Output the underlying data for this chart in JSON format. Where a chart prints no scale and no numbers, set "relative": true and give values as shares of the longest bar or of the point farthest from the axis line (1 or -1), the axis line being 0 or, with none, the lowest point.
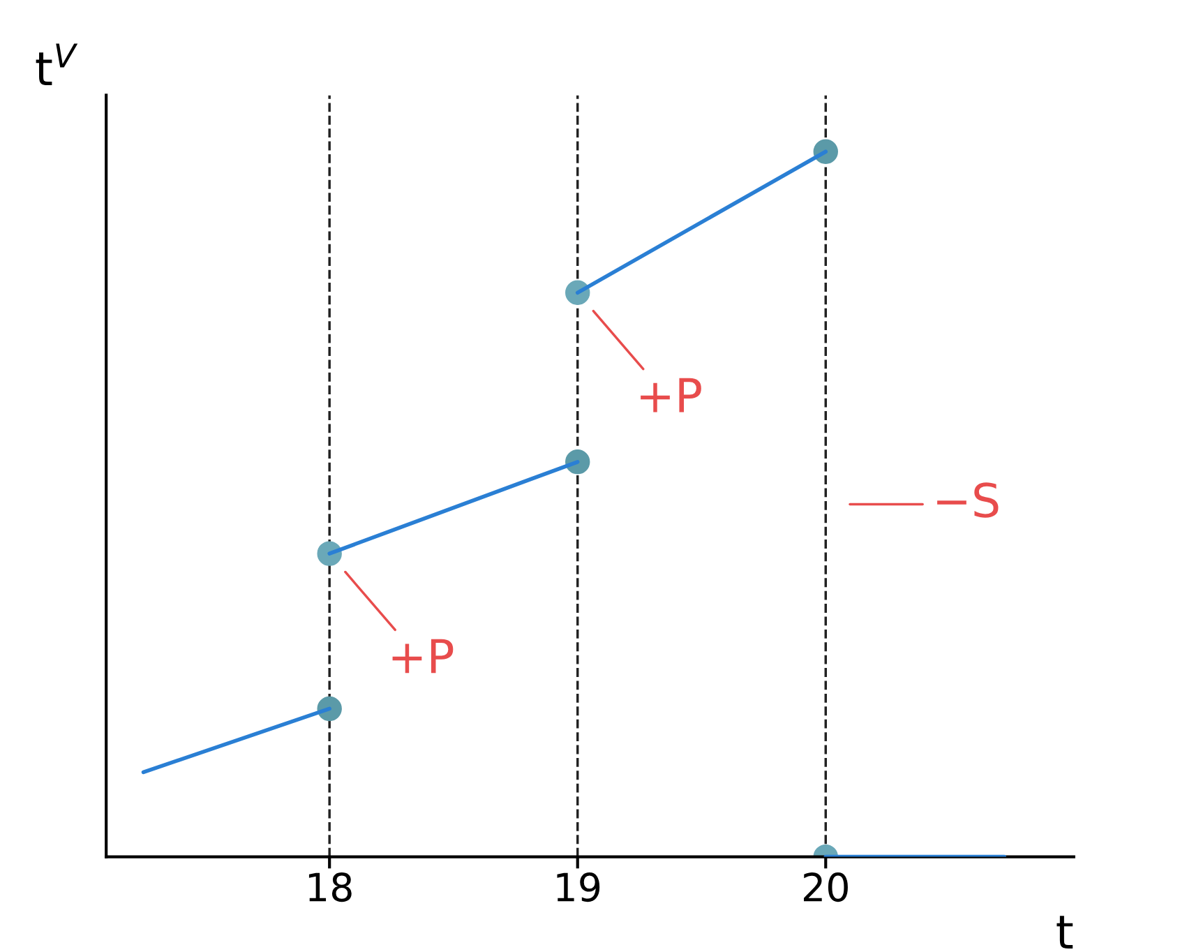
{
  "chart_data": {
    "type": "line",
    "relative": true,
    "xlabel": "t",
    "ylabel": "t$^{V}$",
    "xlim": [
      17.1,
      21.0
    ],
    "xticks": [
      18,
      19,
      20
    ],
    "grid": false,
    "legend": false,
    "line_style": "solid",
    "marker": "none",
    "series": [
      {
        "color": "#2a7fd4",
        "x": [
          17.25,
          18
        ],
        "values": [
          0.12,
          0.21
        ]
      },
      {
        "color": "#2a7fd4",
        "x": [
          18,
          19
        ],
        "values": [
          0.43,
          0.56
        ]
      },
      {
        "color": "#2a7fd4",
        "x": [
          19,
          20
        ],
        "values": [
          0.8,
          1
        ]
      },
      {
        "color": "#2a7fd4",
        "x": [
          20,
          20.72
        ],
        "values": [
          0,
          0
        ]
      },
      {
        "type": "scatter",
        "marker": "circle",
        "color": "#5b9aa8",
        "x": [
          18,
          19,
          20
        ],
        "values": [
          0.21,
          0.56,
          1
        ]
      },
      {
        "type": "scatter",
        "marker": "circle",
        "color": "#6aa8b8",
        "x": [
          18,
          19,
          20
        ],
        "values": [
          0.43,
          0.8,
          0
        ]
      }
    ],
    "ref_lines": [
      {
        "axis": "x",
        "value": 18,
        "color": "#222222",
        "line_style": "dashed"
      },
      {
        "axis": "x",
        "value": 19,
        "color": "#222222",
        "line_style": "dashed"
      },
      {
        "axis": "x",
        "value": 20,
        "color": "#222222",
        "line_style": "dashed"
      }
    ],
    "annotations": [
      {
        "text": "+P",
        "x": 18,
        "y": 0.43
      },
      {
        "text": "+P",
        "x": 19,
        "y": 0.8
      },
      {
        "text": "−S",
        "x": 20,
        "y": 0.5
      }
    ]
  }
}
